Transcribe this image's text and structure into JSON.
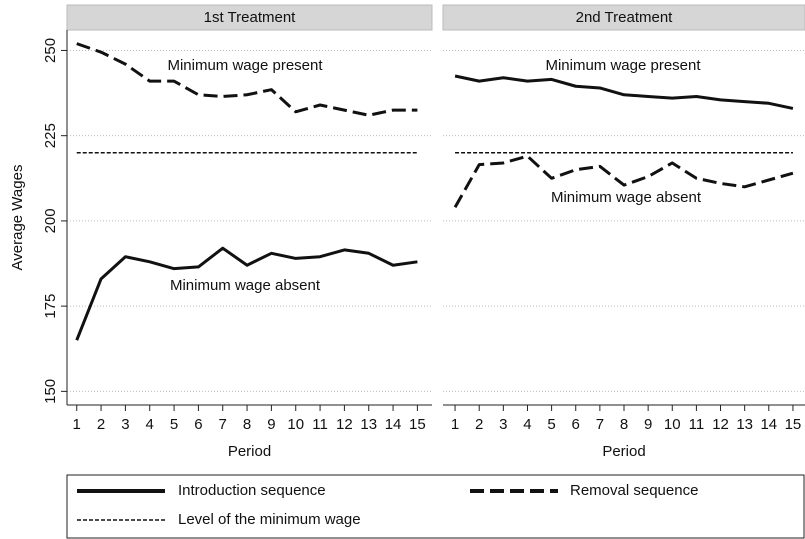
{
  "chart_data": [
    {
      "type": "line",
      "title": "1st Treatment",
      "xlabel": "Period",
      "ylabel": "Average Wages",
      "x": [
        1,
        2,
        3,
        4,
        5,
        6,
        7,
        8,
        9,
        10,
        11,
        12,
        13,
        14,
        15
      ],
      "series": [
        {
          "name": "Introduction sequence",
          "color": "#111111",
          "style": "solid",
          "values": [
            165,
            183,
            189.5,
            188,
            186,
            186.5,
            192,
            187,
            190.5,
            189,
            189.5,
            191.5,
            190.5,
            187,
            188
          ]
        },
        {
          "name": "Removal sequence",
          "color": "#111111",
          "style": "dashed",
          "values": [
            252,
            249.5,
            246,
            241,
            241,
            237,
            236.5,
            237,
            238.5,
            232,
            234,
            232.5,
            231,
            232.5,
            232.5
          ]
        }
      ],
      "hline": {
        "name": "Level of the minimum wage",
        "value": 220
      },
      "annotations": [
        "Minimum wage present",
        "Minimum wage absent"
      ],
      "xlim": [
        0.6,
        15.6
      ],
      "xticks": [
        1,
        2,
        3,
        4,
        5,
        6,
        7,
        8,
        9,
        10,
        11,
        12,
        13,
        14,
        15
      ],
      "ylim": [
        146,
        256
      ],
      "yticks": [
        150,
        175,
        200,
        225,
        250
      ],
      "grid": true
    },
    {
      "type": "line",
      "title": "2nd Treatment",
      "xlabel": "Period",
      "x": [
        1,
        2,
        3,
        4,
        5,
        6,
        7,
        8,
        9,
        10,
        11,
        12,
        13,
        14,
        15
      ],
      "series": [
        {
          "color": "#111111",
          "style": "solid",
          "values": [
            242.5,
            241,
            242,
            241,
            241.5,
            239.5,
            239,
            237,
            236.5,
            236,
            236.5,
            235.5,
            235,
            234.5,
            233
          ]
        },
        {
          "color": "#111111",
          "style": "dashed",
          "values": [
            204,
            216.5,
            217,
            219,
            212.5,
            215,
            216,
            210.5,
            213,
            217,
            212.5,
            211,
            210,
            212,
            214
          ]
        }
      ],
      "hline": {
        "value": 220
      },
      "annotations": [
        "Minimum wage present",
        "Minimum wage absent"
      ],
      "xlim": [
        0.5,
        15.5
      ],
      "xticks": [
        1,
        2,
        3,
        4,
        5,
        6,
        7,
        8,
        9,
        10,
        11,
        12,
        13,
        14,
        15
      ],
      "ylim": [
        146,
        256
      ],
      "yticks": [
        150,
        175,
        200,
        225,
        250
      ],
      "grid": true
    }
  ]
}
